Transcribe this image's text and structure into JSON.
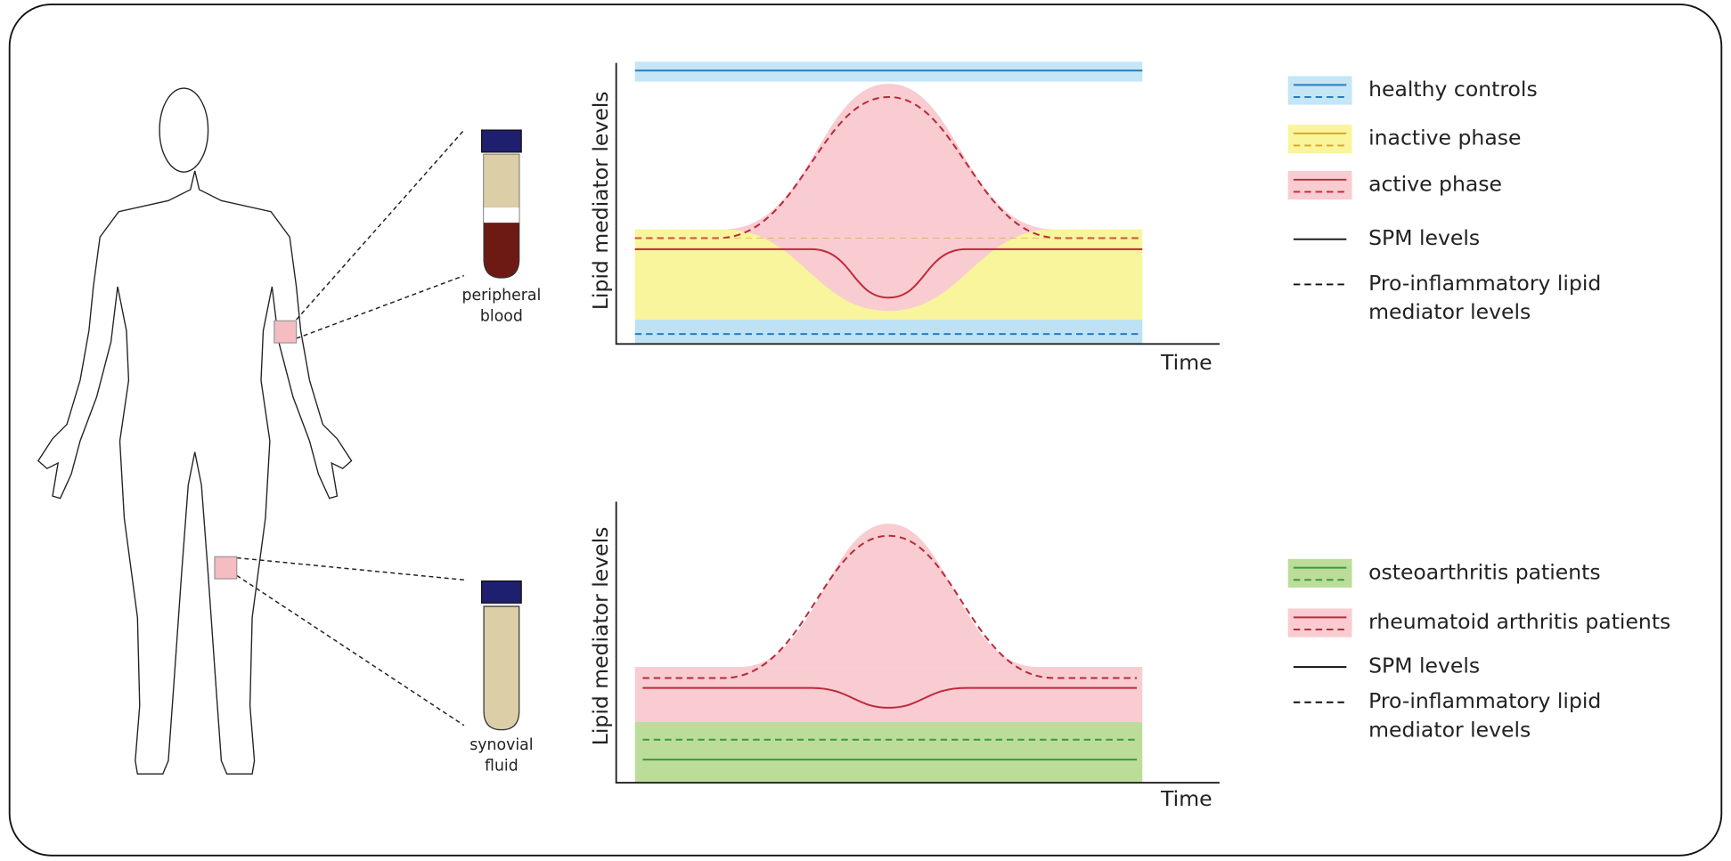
{
  "samples": [
    {
      "label": [
        "peripheral",
        "blood"
      ]
    },
    {
      "label": [
        "synovial",
        "fluid"
      ]
    }
  ],
  "panels": [
    {
      "y_label": "Lipid mediator levels",
      "x_label": "Time",
      "legend": [
        {
          "label": [
            "healthy controls"
          ]
        },
        {
          "label": [
            "inactive phase"
          ]
        },
        {
          "label": [
            "active phase"
          ]
        },
        {
          "label": [
            "SPM levels"
          ]
        },
        {
          "label": [
            "Pro-inflammatory lipid",
            "mediator levels"
          ]
        }
      ]
    },
    {
      "y_label": "Lipid mediator levels",
      "x_label": "Time",
      "legend": [
        {
          "label": [
            "osteoarthritis patients"
          ]
        },
        {
          "label": [
            "rheumatoid arthritis patients"
          ]
        },
        {
          "label": [
            "SPM levels"
          ]
        },
        {
          "label": [
            "Pro-inflammatory lipid",
            "mediator levels"
          ]
        }
      ]
    }
  ]
}
